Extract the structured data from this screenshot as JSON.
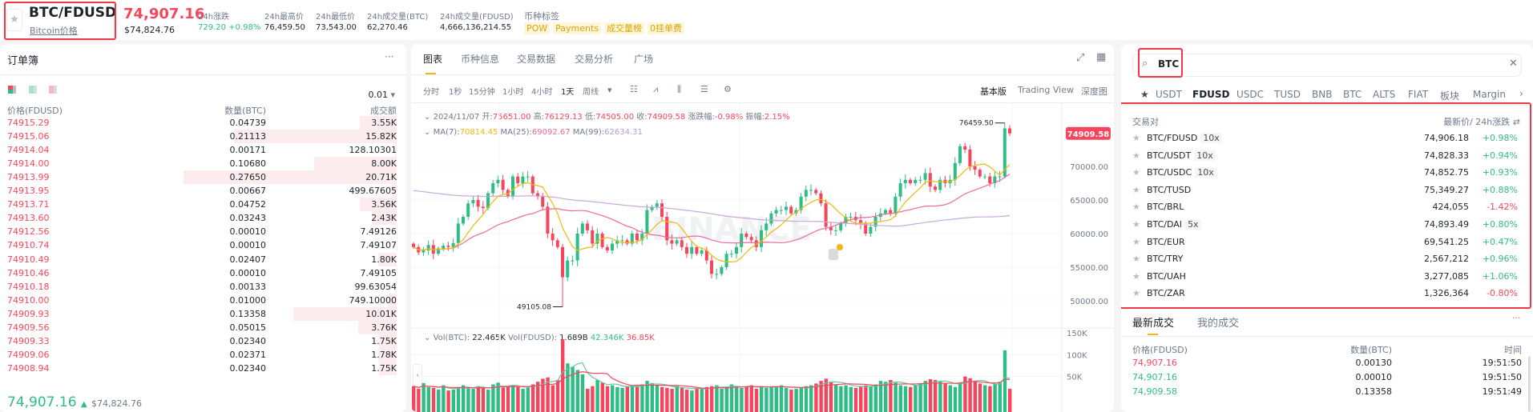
{
  "header": {
    "symbol": "BTC/FDUSD",
    "symbol_link": "Bitcoin价格",
    "price": "74,907.16",
    "price_usd": "$74,824.76",
    "stats": [
      {
        "label": "24h涨跌",
        "value": "729.20 +0.98%",
        "color": "#2ebd85"
      },
      {
        "label": "24h最高价",
        "value": "76,459.50"
      },
      {
        "label": "24h最低价",
        "value": "73,543.00"
      },
      {
        "label": "24h成交量(BTC)",
        "value": "62,270.46"
      },
      {
        "label": "24h成交量(FDUSD)",
        "value": "4,666,136,214.55"
      }
    ],
    "tags_label": "币种标签",
    "tags": [
      "POW",
      "Payments",
      "成交量榜",
      "0挂单费"
    ]
  },
  "orderbook": {
    "title": "订单簿",
    "more": "···",
    "precision": "0.01",
    "headers": [
      "价格(FDUSD)",
      "数量(BTC)",
      "成交额"
    ],
    "asks": [
      [
        "74915.29",
        "0.04739",
        "3.55K"
      ],
      [
        "74915.06",
        "0.21113",
        "15.82K"
      ],
      [
        "74914.04",
        "0.00171",
        "128.10301"
      ],
      [
        "74914.00",
        "0.10680",
        "8.00K"
      ],
      [
        "74913.99",
        "0.27650",
        "20.71K"
      ],
      [
        "74913.95",
        "0.00667",
        "499.67605"
      ],
      [
        "74913.71",
        "0.04752",
        "3.56K"
      ],
      [
        "74913.60",
        "0.03243",
        "2.43K"
      ],
      [
        "74912.56",
        "0.00010",
        "7.49126"
      ],
      [
        "74910.74",
        "0.00010",
        "7.49107"
      ],
      [
        "74910.49",
        "0.02407",
        "1.80K"
      ],
      [
        "74910.46",
        "0.00010",
        "7.49105"
      ],
      [
        "74910.18",
        "0.00133",
        "99.63054"
      ],
      [
        "74910.00",
        "0.01000",
        "749.10000"
      ],
      [
        "74909.93",
        "0.13358",
        "10.01K"
      ],
      [
        "74909.56",
        "0.05015",
        "3.76K"
      ],
      [
        "74909.33",
        "0.02340",
        "1.75K"
      ],
      [
        "74909.06",
        "0.02371",
        "1.78K"
      ],
      [
        "74908.94",
        "0.02340",
        "1.75K"
      ]
    ],
    "last_price": "74,907.16",
    "last_price_usd": "$74,824.76"
  },
  "chart_panel": {
    "tabs": [
      "图表",
      "币种信息",
      "交易数据",
      "交易分析",
      "广场"
    ],
    "intervals": [
      "分时",
      "1秒",
      "15分钟",
      "1小时",
      "4小时",
      "1天",
      "周线"
    ],
    "active_interval": "1天",
    "views": [
      "基本版",
      "Trading View",
      "深度图"
    ],
    "ohlc": {
      "date": "2024/11/07",
      "open_label": "开:",
      "open": "75651.00",
      "high_label": "高:",
      "high": "76129.13",
      "low_label": "低:",
      "low": "74505.00",
      "close_label": "收:",
      "close": "74909.58",
      "chg_label": "涨跌幅:",
      "chg": "-0.98%",
      "amp_label": "振幅:",
      "amp": "2.15%"
    },
    "ma": {
      "ma7_label": "MA(7):",
      "ma7": "70814.45",
      "ma25_label": "MA(25):",
      "ma25": "69092.67",
      "ma99_label": "MA(99):",
      "ma99": "62634.31"
    },
    "vol": {
      "label1": "Vol(BTC):",
      "v1": "22.465K",
      "label2": "Vol(FDUSD):",
      "v2": "1.689B",
      "v3": "42.346K",
      "v4": "36.85K"
    },
    "price_axis": [
      "70000.00",
      "65000.00",
      "60000.00",
      "55000.00",
      "50000.00"
    ],
    "vol_axis": [
      "150K",
      "100K",
      "50K"
    ],
    "current_price": "74909.58",
    "max_label": "76459.50",
    "min_label": "49105.08",
    "watermark": "BINANCE",
    "colors": {
      "up": "#2ebd85",
      "down": "#f6465d",
      "ma7": "#f0b90b",
      "ma25": "#eb6a9b",
      "ma99": "#c9a8d8"
    },
    "closes": [
      58000,
      57200,
      57500,
      58300,
      57000,
      57800,
      58200,
      58000,
      58600,
      61500,
      62500,
      64500,
      65000,
      64000,
      63800,
      66000,
      67500,
      68000,
      66500,
      65500,
      68500,
      67500,
      68500,
      68500,
      66000,
      65500,
      64000,
      60000,
      59000,
      58000,
      53500,
      56000,
      56000,
      60000,
      61500,
      60500,
      58500,
      60000,
      58000,
      57500,
      58500,
      59000,
      59000,
      58500,
      60000,
      59000,
      60000,
      63500,
      64000,
      64500,
      62500,
      59000,
      58500,
      59000,
      58000,
      57000,
      58000,
      57000,
      57500,
      56000,
      54000,
      54000,
      55000,
      57000,
      57000,
      58000,
      60000,
      59500,
      59000,
      58000,
      60500,
      61500,
      63000,
      63500,
      63500,
      64000,
      63000,
      63500,
      65500,
      66500,
      66500,
      66000,
      64500,
      61000,
      60500,
      60500,
      61500,
      62500,
      62500,
      62000,
      61500,
      60000,
      61000,
      62500,
      63000,
      63500,
      63000,
      65500,
      67500,
      68000,
      67500,
      68000,
      68000,
      69000,
      67000,
      66500,
      68000,
      67500,
      68000,
      70500,
      73000,
      72500,
      70000,
      69500,
      68500,
      68500,
      67500,
      68500,
      68500,
      75651,
      74909.58
    ],
    "volume_k": [
      28,
      22,
      35,
      26,
      24,
      20,
      30,
      18,
      20,
      26,
      30,
      24,
      22,
      28,
      25,
      20,
      32,
      36,
      25,
      28,
      30,
      26,
      22,
      25,
      32,
      38,
      45,
      48,
      30,
      42,
      135,
      80,
      72,
      65,
      55,
      22,
      28,
      42,
      36,
      28,
      30,
      26,
      24,
      28,
      30,
      28,
      32,
      40,
      35,
      30,
      26,
      24,
      22,
      28,
      24,
      20,
      18,
      24,
      22,
      26,
      28,
      30,
      22,
      26,
      32,
      28,
      24,
      26,
      30,
      22,
      28,
      24,
      26,
      28,
      30,
      24,
      20,
      22,
      26,
      28,
      30,
      34,
      40,
      45,
      38,
      32,
      28,
      30,
      26,
      24,
      28,
      30,
      28,
      32,
      40,
      38,
      42,
      36,
      30,
      28,
      26,
      30,
      34,
      40,
      44,
      42,
      38,
      34,
      30,
      26,
      36,
      50,
      46,
      40,
      34,
      30,
      28,
      32,
      38,
      110,
      22
    ]
  },
  "market": {
    "search_value": "BTC",
    "tabs": [
      "USDT",
      "FDUSD",
      "USDC",
      "TUSD",
      "BNB",
      "BTC",
      "ALTS",
      "FIAT",
      "板块",
      "Margin"
    ],
    "active_tab": "FDUSD",
    "col_pair": "交易对",
    "col_price": "最新价/ 24h涨跌",
    "pairs": [
      {
        "name": "BTC/FDUSD",
        "lev": "10x",
        "price": "74,906.18",
        "chg": "+0.98%"
      },
      {
        "name": "BTC/USDT",
        "lev": "10x",
        "price": "74,828.33",
        "chg": "+0.94%"
      },
      {
        "name": "BTC/USDC",
        "lev": "10x",
        "price": "74,852.75",
        "chg": "+0.93%"
      },
      {
        "name": "BTC/TUSD",
        "lev": "",
        "price": "75,349.27",
        "chg": "+0.88%"
      },
      {
        "name": "BTC/BRL",
        "lev": "",
        "price": "424,055",
        "chg": "-1.42%"
      },
      {
        "name": "BTC/DAI",
        "lev": "5x",
        "price": "74,893.49",
        "chg": "+0.80%"
      },
      {
        "name": "BTC/EUR",
        "lev": "",
        "price": "69,541.25",
        "chg": "+0.47%"
      },
      {
        "name": "BTC/TRY",
        "lev": "",
        "price": "2,567,212",
        "chg": "+0.96%"
      },
      {
        "name": "BTC/UAH",
        "lev": "",
        "price": "3,277,085",
        "chg": "+1.06%"
      },
      {
        "name": "BTC/ZAR",
        "lev": "",
        "price": "1,326,364",
        "chg": "-0.80%"
      }
    ]
  },
  "trades": {
    "tabs": [
      "最新成交",
      "我的成交"
    ],
    "more": "···",
    "headers": [
      "价格(FDUSD)",
      "数量(BTC)",
      "时间"
    ],
    "rows": [
      {
        "price": "74,907.16",
        "qty": "0.00130",
        "time": "19:51:50",
        "side": "sell"
      },
      {
        "price": "74,907.16",
        "qty": "0.00010",
        "time": "19:51:50",
        "side": "buy"
      },
      {
        "price": "74,909.58",
        "qty": "0.13358",
        "time": "19:51:49",
        "side": "buy"
      }
    ]
  }
}
